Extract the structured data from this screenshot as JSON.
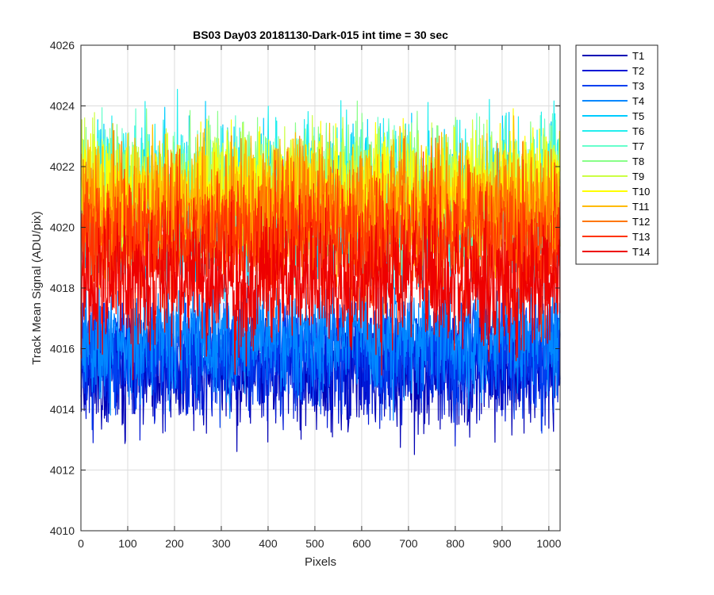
{
  "chart_data": {
    "type": "line",
    "title": "BS03 Day03 20181130-Dark-015 int time = 30 sec",
    "xlabel": "Pixels",
    "ylabel": "Track Mean Signal (ADU/pix)",
    "xlim": [
      0,
      1024
    ],
    "ylim": [
      4010,
      4026
    ],
    "xticks": [
      "0",
      "100",
      "200",
      "300",
      "400",
      "500",
      "600",
      "700",
      "800",
      "900",
      "1000"
    ],
    "yticks": [
      "4010",
      "4012",
      "4014",
      "4016",
      "4018",
      "4020",
      "4022",
      "4024",
      "4026"
    ],
    "grid": true,
    "legend_position": "outside-top-right",
    "n_points": 1024,
    "series": [
      {
        "name": "T1",
        "color": "#0000b4",
        "mean": 4015.3,
        "spread": 1.0,
        "peak_max": 4016.5,
        "peak_min": 4012.0
      },
      {
        "name": "T2",
        "color": "#0018d6",
        "mean": 4015.7,
        "spread": 1.0,
        "peak_max": 4017.0,
        "peak_min": 4012.5
      },
      {
        "name": "T3",
        "color": "#0040f0",
        "mean": 4016.0,
        "spread": 1.0,
        "peak_max": 4017.5,
        "peak_min": 4013.0
      },
      {
        "name": "T4",
        "color": "#0088ff",
        "mean": 4016.4,
        "spread": 1.0,
        "peak_max": 4018.0,
        "peak_min": 4013.5
      },
      {
        "name": "T5",
        "color": "#00ccff",
        "mean": 4020.5,
        "spread": 1.3,
        "peak_max": 4025.3,
        "peak_min": 4016.5
      },
      {
        "name": "T6",
        "color": "#22eeee",
        "mean": 4021.0,
        "spread": 1.2,
        "peak_max": 4024.7,
        "peak_min": 4017.5
      },
      {
        "name": "T7",
        "color": "#66ffcc",
        "mean": 4021.0,
        "spread": 1.1,
        "peak_max": 4024.0,
        "peak_min": 4018.0
      },
      {
        "name": "T8",
        "color": "#88ff88",
        "mean": 4021.2,
        "spread": 1.1,
        "peak_max": 4024.5,
        "peak_min": 4018.0
      },
      {
        "name": "T9",
        "color": "#ccff44",
        "mean": 4021.2,
        "spread": 1.0,
        "peak_max": 4024.0,
        "peak_min": 4018.0
      },
      {
        "name": "T10",
        "color": "#ffff00",
        "mean": 4021.0,
        "spread": 1.0,
        "peak_max": 4024.0,
        "peak_min": 4018.0
      },
      {
        "name": "T11",
        "color": "#ffbb00",
        "mean": 4020.8,
        "spread": 1.1,
        "peak_max": 4024.6,
        "peak_min": 4017.5
      },
      {
        "name": "T12",
        "color": "#ff7700",
        "mean": 4020.3,
        "spread": 1.1,
        "peak_max": 4024.2,
        "peak_min": 4016.5
      },
      {
        "name": "T13",
        "color": "#ff3300",
        "mean": 4019.5,
        "spread": 1.1,
        "peak_max": 4023.0,
        "peak_min": 4015.5
      },
      {
        "name": "T14",
        "color": "#ee0000",
        "mean": 4018.2,
        "spread": 1.1,
        "peak_max": 4022.8,
        "peak_min": 4013.7
      }
    ]
  }
}
